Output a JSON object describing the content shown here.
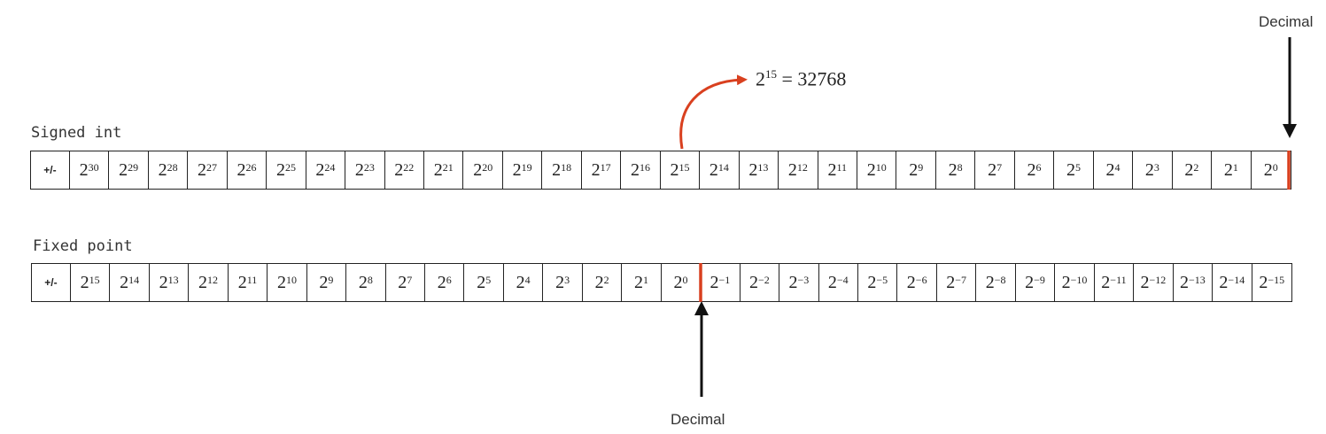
{
  "labels": {
    "decimal_top": "Decimal",
    "decimal_bottom": "Decimal",
    "signed_int": "Signed int",
    "fixed_point": "Fixed point"
  },
  "formula": {
    "base": "2",
    "exp": "15",
    "rhs": "= 32768"
  },
  "signed_int": {
    "sign": "+/-",
    "exponents": [
      "30",
      "29",
      "28",
      "27",
      "26",
      "25",
      "24",
      "23",
      "22",
      "21",
      "20",
      "19",
      "18",
      "17",
      "16",
      "15",
      "14",
      "13",
      "12",
      "11",
      "10",
      "9",
      "8",
      "7",
      "6",
      "5",
      "4",
      "3",
      "2",
      "1",
      "0"
    ]
  },
  "fixed_point": {
    "sign": "+/-",
    "exponents": [
      "15",
      "14",
      "13",
      "12",
      "11",
      "10",
      "9",
      "8",
      "7",
      "6",
      "5",
      "4",
      "3",
      "2",
      "1",
      "0",
      "−1",
      "−2",
      "−3",
      "−4",
      "−5",
      "−6",
      "−7",
      "−8",
      "−9",
      "−10",
      "−11",
      "−12",
      "−13",
      "−14",
      "−15"
    ]
  },
  "colors": {
    "highlight": "#d9401f",
    "arrow": "#111111",
    "border": "#222222"
  }
}
